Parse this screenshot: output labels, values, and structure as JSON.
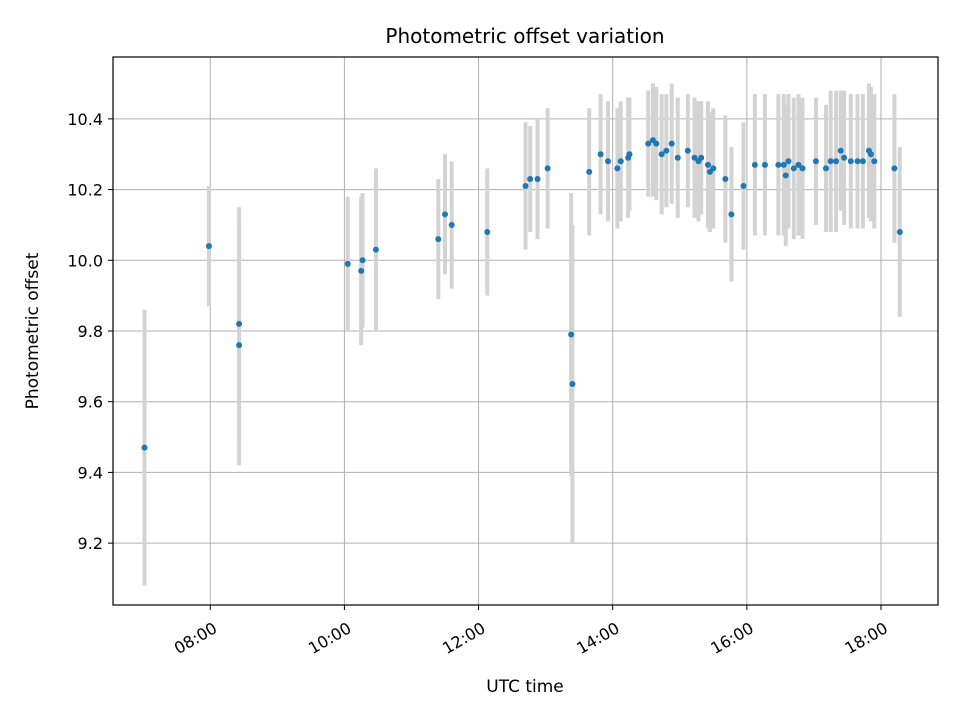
{
  "chart_data": {
    "type": "scatter",
    "title": "Photometric offset variation",
    "xlabel": "UTC time",
    "ylabel": "Photometric offset",
    "x_unit": "hours UTC",
    "xlim": [
      6.55,
      18.85
    ],
    "ylim": [
      9.025,
      10.575
    ],
    "grid": true,
    "colors": {
      "point": "#1f77b4",
      "errorbar": "#d3d3d3"
    },
    "x_ticks": [
      {
        "value": 8,
        "label": "08:00"
      },
      {
        "value": 10,
        "label": "10:00"
      },
      {
        "value": 12,
        "label": "12:00"
      },
      {
        "value": 14,
        "label": "14:00"
      },
      {
        "value": 16,
        "label": "16:00"
      },
      {
        "value": 18,
        "label": "18:00"
      }
    ],
    "y_ticks": [
      {
        "value": 9.2,
        "label": "9.2"
      },
      {
        "value": 9.4,
        "label": "9.4"
      },
      {
        "value": 9.6,
        "label": "9.6"
      },
      {
        "value": 9.8,
        "label": "9.8"
      },
      {
        "value": 10.0,
        "label": "10.0"
      },
      {
        "value": 10.2,
        "label": "10.2"
      },
      {
        "value": 10.4,
        "label": "10.4"
      }
    ],
    "points": [
      {
        "x": 7.02,
        "y": 9.47,
        "err": 0.39
      },
      {
        "x": 7.98,
        "y": 10.04,
        "err": 0.17
      },
      {
        "x": 8.43,
        "y": 9.82,
        "err": 0.33
      },
      {
        "x": 8.43,
        "y": 9.76,
        "err": 0.34
      },
      {
        "x": 10.05,
        "y": 9.99,
        "err": 0.19
      },
      {
        "x": 10.25,
        "y": 9.97,
        "err": 0.21
      },
      {
        "x": 10.27,
        "y": 10.0,
        "err": 0.19
      },
      {
        "x": 10.47,
        "y": 10.03,
        "err": 0.23
      },
      {
        "x": 11.4,
        "y": 10.06,
        "err": 0.17
      },
      {
        "x": 11.5,
        "y": 10.13,
        "err": 0.17
      },
      {
        "x": 11.6,
        "y": 10.1,
        "err": 0.18
      },
      {
        "x": 12.13,
        "y": 10.08,
        "err": 0.18
      },
      {
        "x": 12.7,
        "y": 10.21,
        "err": 0.18
      },
      {
        "x": 12.77,
        "y": 10.23,
        "err": 0.15
      },
      {
        "x": 12.88,
        "y": 10.23,
        "err": 0.17
      },
      {
        "x": 13.03,
        "y": 10.26,
        "err": 0.17
      },
      {
        "x": 13.38,
        "y": 9.79,
        "err": 0.4
      },
      {
        "x": 13.4,
        "y": 9.65,
        "err": 0.45
      },
      {
        "x": 13.65,
        "y": 10.25,
        "err": 0.18
      },
      {
        "x": 13.82,
        "y": 10.3,
        "err": 0.17
      },
      {
        "x": 13.93,
        "y": 10.28,
        "err": 0.17
      },
      {
        "x": 14.07,
        "y": 10.26,
        "err": 0.17
      },
      {
        "x": 14.12,
        "y": 10.28,
        "err": 0.17
      },
      {
        "x": 14.23,
        "y": 10.29,
        "err": 0.17
      },
      {
        "x": 14.25,
        "y": 10.3,
        "err": 0.16
      },
      {
        "x": 14.53,
        "y": 10.33,
        "err": 0.15
      },
      {
        "x": 14.6,
        "y": 10.34,
        "err": 0.16
      },
      {
        "x": 14.65,
        "y": 10.33,
        "err": 0.16
      },
      {
        "x": 14.73,
        "y": 10.3,
        "err": 0.17
      },
      {
        "x": 14.8,
        "y": 10.31,
        "err": 0.16
      },
      {
        "x": 14.88,
        "y": 10.33,
        "err": 0.17
      },
      {
        "x": 14.97,
        "y": 10.29,
        "err": 0.17
      },
      {
        "x": 15.12,
        "y": 10.31,
        "err": 0.16
      },
      {
        "x": 15.22,
        "y": 10.29,
        "err": 0.17
      },
      {
        "x": 15.28,
        "y": 10.28,
        "err": 0.17
      },
      {
        "x": 15.32,
        "y": 10.29,
        "err": 0.16
      },
      {
        "x": 15.42,
        "y": 10.27,
        "err": 0.18
      },
      {
        "x": 15.45,
        "y": 10.25,
        "err": 0.17
      },
      {
        "x": 15.5,
        "y": 10.26,
        "err": 0.17
      },
      {
        "x": 15.68,
        "y": 10.23,
        "err": 0.18
      },
      {
        "x": 15.77,
        "y": 10.13,
        "err": 0.19
      },
      {
        "x": 15.95,
        "y": 10.21,
        "err": 0.18
      },
      {
        "x": 16.12,
        "y": 10.27,
        "err": 0.2
      },
      {
        "x": 16.27,
        "y": 10.27,
        "err": 0.2
      },
      {
        "x": 16.47,
        "y": 10.27,
        "err": 0.2
      },
      {
        "x": 16.55,
        "y": 10.27,
        "err": 0.2
      },
      {
        "x": 16.58,
        "y": 10.24,
        "err": 0.2
      },
      {
        "x": 16.62,
        "y": 10.28,
        "err": 0.19
      },
      {
        "x": 16.7,
        "y": 10.26,
        "err": 0.2
      },
      {
        "x": 16.77,
        "y": 10.27,
        "err": 0.2
      },
      {
        "x": 16.83,
        "y": 10.26,
        "err": 0.2
      },
      {
        "x": 17.03,
        "y": 10.28,
        "err": 0.18
      },
      {
        "x": 17.18,
        "y": 10.26,
        "err": 0.18
      },
      {
        "x": 17.25,
        "y": 10.28,
        "err": 0.2
      },
      {
        "x": 17.33,
        "y": 10.28,
        "err": 0.2
      },
      {
        "x": 17.4,
        "y": 10.31,
        "err": 0.17
      },
      {
        "x": 17.45,
        "y": 10.29,
        "err": 0.19
      },
      {
        "x": 17.55,
        "y": 10.28,
        "err": 0.19
      },
      {
        "x": 17.65,
        "y": 10.28,
        "err": 0.19
      },
      {
        "x": 17.73,
        "y": 10.28,
        "err": 0.19
      },
      {
        "x": 17.82,
        "y": 10.31,
        "err": 0.19
      },
      {
        "x": 17.85,
        "y": 10.3,
        "err": 0.19
      },
      {
        "x": 17.9,
        "y": 10.28,
        "err": 0.19
      },
      {
        "x": 18.2,
        "y": 10.26,
        "err": 0.21
      },
      {
        "x": 18.28,
        "y": 10.08,
        "err": 0.24
      }
    ]
  }
}
